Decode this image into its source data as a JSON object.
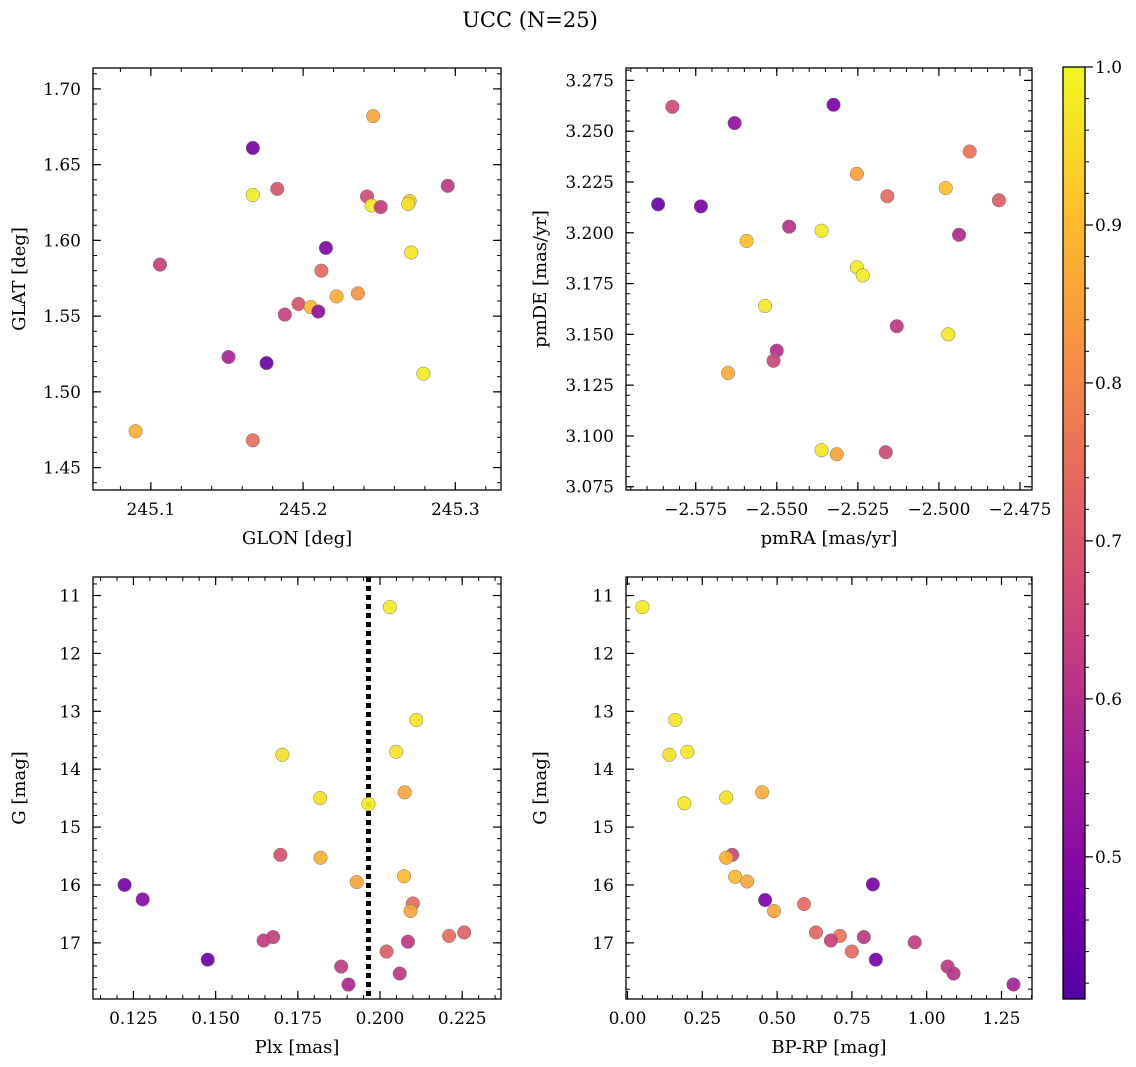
{
  "figure_title": "UCC (N=25)",
  "colorbar": {
    "range": [
      0.41,
      1.0
    ],
    "ticks": [
      0.5,
      0.6,
      0.7,
      0.8,
      0.9,
      1.0
    ],
    "tick_labels": [
      "0.5",
      "0.6",
      "0.7",
      "0.8",
      "0.9",
      "1.0"
    ],
    "colormap": "plasma"
  },
  "chart_data": [
    {
      "type": "scatter",
      "xlabel": "GLON [deg]",
      "ylabel": "GLAT [deg]",
      "xlim": [
        245.062,
        245.33
      ],
      "ylim": [
        1.4352,
        1.7138
      ],
      "xticks": [
        245.1,
        245.2,
        245.3
      ],
      "xtick_labels": [
        "245.1",
        "245.2",
        "245.3"
      ],
      "yticks": [
        1.45,
        1.5,
        1.55,
        1.6,
        1.65,
        1.7
      ],
      "ytick_labels": [
        "1.45",
        "1.50",
        "1.55",
        "1.60",
        "1.65",
        "1.70"
      ],
      "x_minor_step": 0.02,
      "y_minor_step": 0.01,
      "points": [
        {
          "x": 245.246,
          "y": 1.682,
          "c": 0.86
        },
        {
          "x": 245.167,
          "y": 1.661,
          "c": 0.47
        },
        {
          "x": 245.295,
          "y": 1.636,
          "c": 0.62
        },
        {
          "x": 245.183,
          "y": 1.634,
          "c": 0.69
        },
        {
          "x": 245.167,
          "y": 1.63,
          "c": 0.98
        },
        {
          "x": 245.242,
          "y": 1.629,
          "c": 0.67
        },
        {
          "x": 245.27,
          "y": 1.626,
          "c": 0.93
        },
        {
          "x": 245.269,
          "y": 1.624,
          "c": 0.96
        },
        {
          "x": 245.245,
          "y": 1.623,
          "c": 0.97
        },
        {
          "x": 245.251,
          "y": 1.622,
          "c": 0.63
        },
        {
          "x": 245.215,
          "y": 1.595,
          "c": 0.49
        },
        {
          "x": 245.271,
          "y": 1.592,
          "c": 0.97
        },
        {
          "x": 245.106,
          "y": 1.584,
          "c": 0.64
        },
        {
          "x": 245.212,
          "y": 1.58,
          "c": 0.74
        },
        {
          "x": 245.222,
          "y": 1.563,
          "c": 0.88
        },
        {
          "x": 245.236,
          "y": 1.565,
          "c": 0.82
        },
        {
          "x": 245.197,
          "y": 1.558,
          "c": 0.69
        },
        {
          "x": 245.205,
          "y": 1.556,
          "c": 0.9
        },
        {
          "x": 245.21,
          "y": 1.553,
          "c": 0.52
        },
        {
          "x": 245.188,
          "y": 1.551,
          "c": 0.64
        },
        {
          "x": 245.151,
          "y": 1.523,
          "c": 0.58
        },
        {
          "x": 245.176,
          "y": 1.519,
          "c": 0.45
        },
        {
          "x": 245.279,
          "y": 1.512,
          "c": 0.98
        },
        {
          "x": 245.09,
          "y": 1.474,
          "c": 0.88
        },
        {
          "x": 245.167,
          "y": 1.468,
          "c": 0.75
        }
      ]
    },
    {
      "type": "scatter",
      "xlabel": "pmRA [mas/yr]",
      "ylabel": "pmDE [mas/yr]",
      "xlim": [
        -2.5965,
        -2.4713
      ],
      "ylim": [
        3.0734,
        3.2811
      ],
      "xticks": [
        -2.575,
        -2.55,
        -2.525,
        -2.5,
        -2.475
      ],
      "xtick_labels": [
        "−2.575",
        "−2.550",
        "−2.525",
        "−2.500",
        "−2.475"
      ],
      "yticks": [
        3.075,
        3.1,
        3.125,
        3.15,
        3.175,
        3.2,
        3.225,
        3.25,
        3.275
      ],
      "ytick_labels": [
        "3.075",
        "3.100",
        "3.125",
        "3.150",
        "3.175",
        "3.200",
        "3.225",
        "3.250",
        "3.275"
      ],
      "x_minor_step": 0.005,
      "y_minor_step": 0.005,
      "points": [
        {
          "x": -2.5822,
          "y": 3.262,
          "c": 0.66
        },
        {
          "x": -2.5325,
          "y": 3.263,
          "c": 0.48
        },
        {
          "x": -2.563,
          "y": 3.254,
          "c": 0.52
        },
        {
          "x": -2.4905,
          "y": 3.24,
          "c": 0.76
        },
        {
          "x": -2.5253,
          "y": 3.229,
          "c": 0.85
        },
        {
          "x": -2.4979,
          "y": 3.222,
          "c": 0.91
        },
        {
          "x": -2.5159,
          "y": 3.218,
          "c": 0.74
        },
        {
          "x": -2.4815,
          "y": 3.216,
          "c": 0.71
        },
        {
          "x": -2.5866,
          "y": 3.214,
          "c": 0.44
        },
        {
          "x": -2.5734,
          "y": 3.213,
          "c": 0.48
        },
        {
          "x": -2.5462,
          "y": 3.203,
          "c": 0.6
        },
        {
          "x": -2.5362,
          "y": 3.201,
          "c": 0.98
        },
        {
          "x": -2.4938,
          "y": 3.199,
          "c": 0.59
        },
        {
          "x": -2.5593,
          "y": 3.196,
          "c": 0.91
        },
        {
          "x": -2.5253,
          "y": 3.183,
          "c": 0.98
        },
        {
          "x": -2.5235,
          "y": 3.179,
          "c": 0.98
        },
        {
          "x": -2.5536,
          "y": 3.164,
          "c": 0.97
        },
        {
          "x": -2.513,
          "y": 3.154,
          "c": 0.62
        },
        {
          "x": -2.4971,
          "y": 3.15,
          "c": 0.97
        },
        {
          "x": -2.55,
          "y": 3.142,
          "c": 0.6
        },
        {
          "x": -2.551,
          "y": 3.137,
          "c": 0.65
        },
        {
          "x": -2.565,
          "y": 3.131,
          "c": 0.87
        },
        {
          "x": -2.5362,
          "y": 3.093,
          "c": 0.97
        },
        {
          "x": -2.5315,
          "y": 3.091,
          "c": 0.86
        },
        {
          "x": -2.5164,
          "y": 3.092,
          "c": 0.66
        }
      ]
    },
    {
      "type": "scatter",
      "xlabel": "Plx [mas]",
      "ylabel": "G [mag]",
      "xlim": [
        0.1127,
        0.2368
      ],
      "ylim": [
        17.97,
        10.68
      ],
      "xticks": [
        0.125,
        0.15,
        0.175,
        0.2,
        0.225
      ],
      "xtick_labels": [
        "0.125",
        "0.150",
        "0.175",
        "0.200",
        "0.225"
      ],
      "yticks": [
        11,
        12,
        13,
        14,
        15,
        16,
        17
      ],
      "ytick_labels": [
        "11",
        "12",
        "13",
        "14",
        "15",
        "16",
        "17"
      ],
      "x_minor_step": 0.005,
      "y_minor_step": 0.2,
      "vline": 0.1965,
      "points": [
        {
          "x": 0.203,
          "y": 11.2,
          "c": 0.98
        },
        {
          "x": 0.211,
          "y": 13.15,
          "c": 0.97
        },
        {
          "x": 0.1703,
          "y": 13.75,
          "c": 0.96
        },
        {
          "x": 0.2049,
          "y": 13.7,
          "c": 0.97
        },
        {
          "x": 0.1818,
          "y": 14.5,
          "c": 0.96
        },
        {
          "x": 0.1965,
          "y": 14.6,
          "c": 0.98
        },
        {
          "x": 0.2075,
          "y": 14.4,
          "c": 0.86
        },
        {
          "x": 0.1697,
          "y": 15.48,
          "c": 0.68
        },
        {
          "x": 0.1819,
          "y": 15.53,
          "c": 0.88
        },
        {
          "x": 0.1929,
          "y": 15.95,
          "c": 0.86
        },
        {
          "x": 0.2073,
          "y": 15.85,
          "c": 0.9
        },
        {
          "x": 0.1223,
          "y": 16.0,
          "c": 0.47
        },
        {
          "x": 0.1278,
          "y": 16.25,
          "c": 0.5
        },
        {
          "x": 0.21,
          "y": 16.32,
          "c": 0.74
        },
        {
          "x": 0.2093,
          "y": 16.45,
          "c": 0.86
        },
        {
          "x": 0.2256,
          "y": 16.82,
          "c": 0.72
        },
        {
          "x": 0.221,
          "y": 16.88,
          "c": 0.75
        },
        {
          "x": 0.1675,
          "y": 16.9,
          "c": 0.64
        },
        {
          "x": 0.1646,
          "y": 16.96,
          "c": 0.63
        },
        {
          "x": 0.2085,
          "y": 16.98,
          "c": 0.62
        },
        {
          "x": 0.202,
          "y": 17.15,
          "c": 0.71
        },
        {
          "x": 0.1476,
          "y": 17.29,
          "c": 0.45
        },
        {
          "x": 0.1882,
          "y": 17.41,
          "c": 0.63
        },
        {
          "x": 0.206,
          "y": 17.53,
          "c": 0.62
        },
        {
          "x": 0.1904,
          "y": 17.72,
          "c": 0.58
        }
      ]
    },
    {
      "type": "scatter",
      "xlabel": "BP-RP [mag]",
      "ylabel": "G [mag]",
      "xlim": [
        -0.005,
        1.352
      ],
      "ylim": [
        17.97,
        10.68
      ],
      "xticks": [
        0,
        0.25,
        0.5,
        0.75,
        1.0,
        1.25
      ],
      "xtick_labels": [
        "0.00",
        "0.25",
        "0.50",
        "0.75",
        "1.00",
        "1.25"
      ],
      "yticks": [
        11,
        12,
        13,
        14,
        15,
        16,
        17
      ],
      "ytick_labels": [
        "11",
        "12",
        "13",
        "14",
        "15",
        "16",
        "17"
      ],
      "x_minor_step": 0.05,
      "y_minor_step": 0.2,
      "points": [
        {
          "x": 0.05,
          "y": 11.2,
          "c": 0.98
        },
        {
          "x": 0.16,
          "y": 13.15,
          "c": 0.97
        },
        {
          "x": 0.14,
          "y": 13.75,
          "c": 0.96
        },
        {
          "x": 0.2,
          "y": 13.7,
          "c": 0.97
        },
        {
          "x": 0.19,
          "y": 14.59,
          "c": 0.97
        },
        {
          "x": 0.33,
          "y": 14.49,
          "c": 0.96
        },
        {
          "x": 0.45,
          "y": 14.4,
          "c": 0.87
        },
        {
          "x": 0.35,
          "y": 15.48,
          "c": 0.66
        },
        {
          "x": 0.33,
          "y": 15.53,
          "c": 0.88
        },
        {
          "x": 0.36,
          "y": 15.86,
          "c": 0.9
        },
        {
          "x": 0.4,
          "y": 15.94,
          "c": 0.86
        },
        {
          "x": 0.82,
          "y": 15.99,
          "c": 0.48
        },
        {
          "x": 0.46,
          "y": 16.26,
          "c": 0.48
        },
        {
          "x": 0.59,
          "y": 16.33,
          "c": 0.74
        },
        {
          "x": 0.49,
          "y": 16.45,
          "c": 0.86
        },
        {
          "x": 0.63,
          "y": 16.82,
          "c": 0.73
        },
        {
          "x": 0.71,
          "y": 16.88,
          "c": 0.76
        },
        {
          "x": 0.79,
          "y": 16.9,
          "c": 0.62
        },
        {
          "x": 0.68,
          "y": 16.96,
          "c": 0.64
        },
        {
          "x": 0.96,
          "y": 16.99,
          "c": 0.63
        },
        {
          "x": 0.75,
          "y": 17.15,
          "c": 0.74
        },
        {
          "x": 0.83,
          "y": 17.29,
          "c": 0.47
        },
        {
          "x": 1.07,
          "y": 17.41,
          "c": 0.62
        },
        {
          "x": 1.09,
          "y": 17.53,
          "c": 0.61
        },
        {
          "x": 1.29,
          "y": 17.72,
          "c": 0.56
        }
      ]
    }
  ]
}
